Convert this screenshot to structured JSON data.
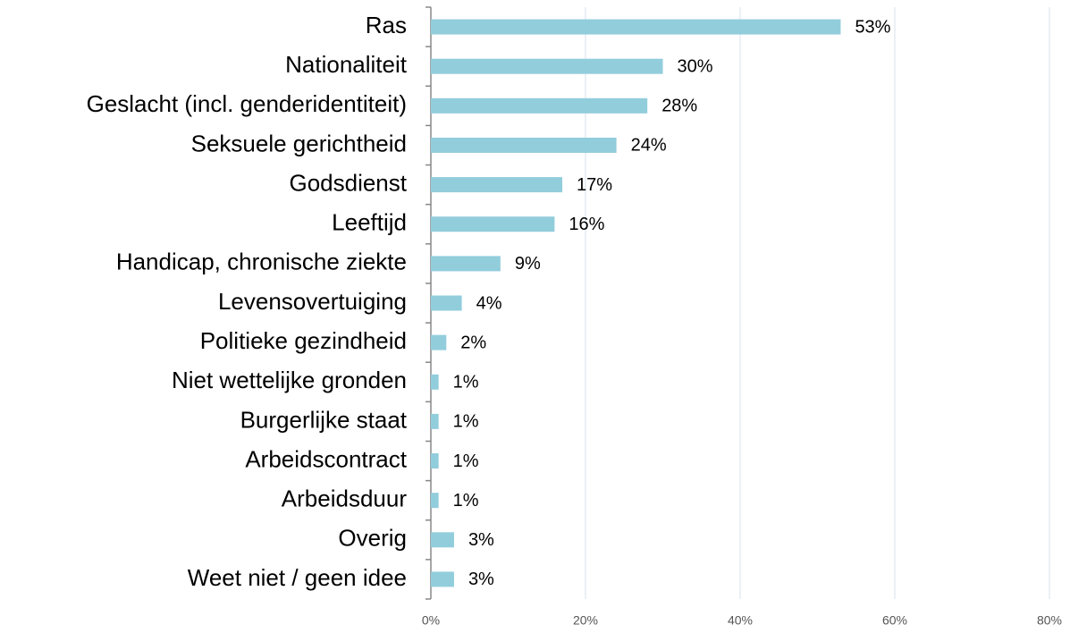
{
  "chart_data": {
    "type": "bar",
    "orientation": "horizontal",
    "categories": [
      "Ras",
      "Nationaliteit",
      "Geslacht (incl. genderidentiteit)",
      "Seksuele gerichtheid",
      "Godsdienst",
      "Leeftijd",
      "Handicap, chronische ziekte",
      "Levensovertuiging",
      "Politieke gezindheid",
      "Niet wettelijke gronden",
      "Burgerlijke staat",
      "Arbeidscontract",
      "Arbeidsduur",
      "Overig",
      "Weet niet / geen idee"
    ],
    "values": [
      53,
      30,
      28,
      24,
      17,
      16,
      9,
      4,
      2,
      1,
      1,
      1,
      1,
      3,
      3
    ],
    "value_labels": [
      "53%",
      "30%",
      "28%",
      "24%",
      "17%",
      "16%",
      "9%",
      "4%",
      "2%",
      "1%",
      "1%",
      "1%",
      "1%",
      "3%",
      "3%"
    ],
    "color": "#92cddc",
    "xlim": [
      0,
      80
    ],
    "xticks": [
      {
        "value": 0,
        "label": "0%"
      },
      {
        "value": 20,
        "label": "20%"
      },
      {
        "value": 40,
        "label": "40%"
      },
      {
        "value": 60,
        "label": "60%"
      },
      {
        "value": 80,
        "label": "80%"
      }
    ],
    "grid": true
  }
}
